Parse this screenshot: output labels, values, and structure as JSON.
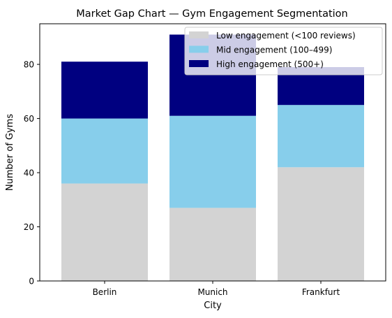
{
  "chart_data": {
    "type": "bar",
    "stacked": true,
    "title": "Market Gap Chart — Gym Engagement Segmentation",
    "xlabel": "City",
    "ylabel": "Number of Gyms",
    "categories": [
      "Berlin",
      "Munich",
      "Frankfurt"
    ],
    "ylim": [
      0,
      95
    ],
    "yticks": [
      0,
      20,
      40,
      60,
      80
    ],
    "grid": false,
    "legend_position": "top-right",
    "series": [
      {
        "name": "Low engagement (<100 reviews)",
        "color": "#d3d3d3",
        "values": [
          36,
          27,
          42
        ]
      },
      {
        "name": "Mid engagement (100–499)",
        "color": "#87ceeb",
        "values": [
          24,
          34,
          23
        ]
      },
      {
        "name": "High engagement (500+)",
        "color": "#000080",
        "values": [
          21,
          30,
          14
        ]
      }
    ]
  }
}
